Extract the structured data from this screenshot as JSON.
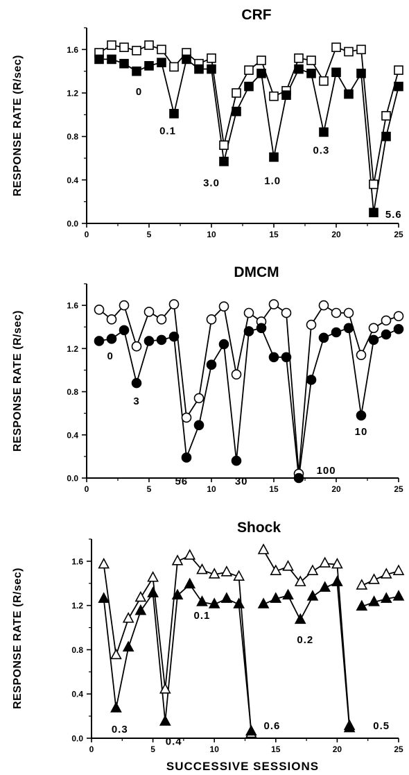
{
  "figure": {
    "xlabel": "SUCCESSIVE SESSIONS"
  },
  "chart_data": [
    {
      "type": "line",
      "title": "CRF",
      "ylabel": "RESPONSE RATE (R/sec)",
      "xlim": [
        0,
        25
      ],
      "ylim": [
        0,
        1.8
      ],
      "xticks": [
        0,
        5,
        10,
        15,
        20,
        25
      ],
      "xtick_labels": [
        "0",
        "5",
        "10",
        "15",
        "20",
        "25"
      ],
      "yticks": [
        0,
        0.4,
        0.8,
        1.2,
        1.6
      ],
      "ytick_labels": [
        "0.0",
        "0.4",
        "0.8",
        "1.2",
        "1.6"
      ],
      "series": [
        {
          "marker": "square-open",
          "segments": [
            [
              [
                1,
                1.57
              ],
              [
                2,
                1.64
              ],
              [
                3,
                1.62
              ],
              [
                4,
                1.59
              ],
              [
                5,
                1.64
              ],
              [
                6,
                1.6
              ],
              [
                7,
                1.44
              ],
              [
                8,
                1.57
              ],
              [
                9,
                1.47
              ],
              [
                10,
                1.52
              ],
              [
                11,
                0.72
              ],
              [
                12,
                1.2
              ],
              [
                13,
                1.41
              ],
              [
                14,
                1.5
              ],
              [
                15,
                1.17
              ],
              [
                16,
                1.22
              ],
              [
                17,
                1.52
              ],
              [
                18,
                1.5
              ],
              [
                19,
                1.31
              ],
              [
                20,
                1.62
              ],
              [
                21,
                1.58
              ],
              [
                22,
                1.6
              ],
              [
                23,
                0.36
              ],
              [
                24,
                0.99
              ],
              [
                25,
                1.41
              ]
            ]
          ]
        },
        {
          "marker": "square-filled",
          "segments": [
            [
              [
                1,
                1.51
              ],
              [
                2,
                1.51
              ],
              [
                3,
                1.47
              ],
              [
                4,
                1.4
              ],
              [
                5,
                1.45
              ],
              [
                6,
                1.48
              ],
              [
                7,
                1.01
              ],
              [
                8,
                1.51
              ],
              [
                9,
                1.42
              ],
              [
                10,
                1.42
              ],
              [
                11,
                0.57
              ],
              [
                12,
                1.03
              ],
              [
                13,
                1.26
              ],
              [
                14,
                1.38
              ],
              [
                15,
                0.61
              ],
              [
                16,
                1.18
              ],
              [
                17,
                1.42
              ],
              [
                18,
                1.38
              ],
              [
                19,
                0.84
              ],
              [
                20,
                1.39
              ],
              [
                21,
                1.19
              ],
              [
                22,
                1.38
              ],
              [
                23,
                0.1
              ],
              [
                24,
                0.8
              ],
              [
                25,
                1.26
              ]
            ]
          ]
        }
      ],
      "annotations": [
        {
          "text": "0",
          "x": 4.2,
          "y": 1.18
        },
        {
          "text": "0.1",
          "x": 6.5,
          "y": 0.82
        },
        {
          "text": "3.0",
          "x": 10.0,
          "y": 0.34
        },
        {
          "text": "1.0",
          "x": 14.9,
          "y": 0.36
        },
        {
          "text": "0.3",
          "x": 18.8,
          "y": 0.64
        },
        {
          "text": "5.6",
          "x": 24.6,
          "y": 0.05
        }
      ]
    },
    {
      "type": "line",
      "title": "DMCM",
      "ylabel": "RESPONSE RATE (R/sec)",
      "xlim": [
        0,
        25
      ],
      "ylim": [
        0,
        1.8
      ],
      "xticks": [
        0,
        5,
        10,
        15,
        20,
        25
      ],
      "xtick_labels": [
        "0",
        "5",
        "10",
        "15",
        "20",
        "25"
      ],
      "yticks": [
        0,
        0.4,
        0.8,
        1.2,
        1.6
      ],
      "ytick_labels": [
        "0.0",
        "0.4",
        "0.8",
        "1.2",
        "1.6"
      ],
      "series": [
        {
          "marker": "circle-open",
          "segments": [
            [
              [
                1,
                1.56
              ],
              [
                2,
                1.47
              ],
              [
                3,
                1.6
              ],
              [
                4,
                1.22
              ],
              [
                5,
                1.54
              ],
              [
                6,
                1.47
              ],
              [
                7,
                1.61
              ],
              [
                8,
                0.56
              ],
              [
                9,
                0.74
              ],
              [
                10,
                1.47
              ],
              [
                11,
                1.59
              ],
              [
                12,
                0.96
              ],
              [
                13,
                1.53
              ],
              [
                14,
                1.45
              ],
              [
                15,
                1.61
              ],
              [
                16,
                1.53
              ],
              [
                17,
                0.04
              ],
              [
                18,
                1.42
              ],
              [
                19,
                1.6
              ],
              [
                20,
                1.53
              ],
              [
                21,
                1.53
              ],
              [
                22,
                1.14
              ],
              [
                23,
                1.39
              ],
              [
                24,
                1.46
              ],
              [
                25,
                1.5
              ]
            ]
          ]
        },
        {
          "marker": "circle-filled",
          "segments": [
            [
              [
                1,
                1.27
              ],
              [
                2,
                1.29
              ],
              [
                3,
                1.37
              ],
              [
                4,
                0.88
              ],
              [
                5,
                1.27
              ],
              [
                6,
                1.28
              ],
              [
                7,
                1.31
              ],
              [
                8,
                0.19
              ],
              [
                9,
                0.49
              ],
              [
                10,
                1.05
              ],
              [
                11,
                1.24
              ],
              [
                12,
                0.16
              ],
              [
                13,
                1.36
              ],
              [
                14,
                1.39
              ],
              [
                15,
                1.12
              ],
              [
                16,
                1.12
              ],
              [
                17,
                0.0
              ],
              [
                18,
                0.91
              ],
              [
                19,
                1.3
              ],
              [
                20,
                1.35
              ],
              [
                21,
                1.39
              ],
              [
                22,
                0.58
              ],
              [
                23,
                1.28
              ],
              [
                24,
                1.33
              ],
              [
                25,
                1.38
              ]
            ]
          ]
        }
      ],
      "annotations": [
        {
          "text": "0",
          "x": 1.9,
          "y": 1.1
        },
        {
          "text": "3",
          "x": 4.0,
          "y": 0.68
        },
        {
          "text": "10",
          "x": 22.0,
          "y": 0.4
        },
        {
          "text": "56",
          "x": 7.6,
          "y": -0.06
        },
        {
          "text": "30",
          "x": 12.4,
          "y": -0.06
        },
        {
          "text": "100",
          "x": 19.2,
          "y": 0.04
        }
      ]
    },
    {
      "type": "line",
      "title": "Shock",
      "ylabel": "RESPONSE RATE (R/sec)",
      "xlabel": "SUCCESSIVE SESSIONS",
      "xlim": [
        0,
        25
      ],
      "ylim": [
        0,
        1.8
      ],
      "xticks": [
        0,
        5,
        10,
        15,
        20,
        25
      ],
      "xtick_labels": [
        "0",
        "5",
        "10",
        "15",
        "20",
        "25"
      ],
      "yticks": [
        0,
        0.4,
        0.8,
        1.2,
        1.6
      ],
      "ytick_labels": [
        "0.0",
        "0.4",
        "0.8",
        "1.2",
        "1.6"
      ],
      "series": [
        {
          "marker": "triangle-open",
          "segments": [
            [
              [
                1,
                1.57
              ],
              [
                2,
                0.75
              ],
              [
                3,
                1.08
              ],
              [
                4,
                1.27
              ],
              [
                5,
                1.45
              ],
              [
                6,
                0.44
              ],
              [
                7,
                1.6
              ],
              [
                8,
                1.65
              ],
              [
                9,
                1.52
              ],
              [
                10,
                1.48
              ],
              [
                11,
                1.5
              ],
              [
                12,
                1.46
              ],
              [
                13,
                0.04
              ]
            ],
            [
              [
                14,
                1.7
              ],
              [
                15,
                1.51
              ],
              [
                16,
                1.55
              ],
              [
                17,
                1.41
              ],
              [
                18,
                1.51
              ],
              [
                19,
                1.58
              ],
              [
                20,
                1.57
              ],
              [
                21,
                0.11
              ]
            ],
            [
              [
                22,
                1.38
              ],
              [
                23,
                1.43
              ],
              [
                24,
                1.48
              ],
              [
                25,
                1.51
              ]
            ]
          ]
        },
        {
          "marker": "triangle-filled",
          "segments": [
            [
              [
                1,
                1.26
              ],
              [
                2,
                0.27
              ],
              [
                3,
                0.82
              ],
              [
                4,
                1.15
              ],
              [
                5,
                1.31
              ],
              [
                6,
                0.15
              ],
              [
                7,
                1.29
              ],
              [
                8,
                1.39
              ],
              [
                9,
                1.23
              ],
              [
                10,
                1.21
              ],
              [
                11,
                1.26
              ],
              [
                12,
                1.21
              ],
              [
                13,
                0.06
              ]
            ],
            [
              [
                14,
                1.21
              ],
              [
                15,
                1.26
              ],
              [
                16,
                1.29
              ],
              [
                17,
                1.07
              ],
              [
                18,
                1.28
              ],
              [
                19,
                1.36
              ],
              [
                20,
                1.41
              ],
              [
                21,
                0.09
              ]
            ],
            [
              [
                22,
                1.19
              ],
              [
                23,
                1.23
              ],
              [
                24,
                1.26
              ],
              [
                25,
                1.28
              ]
            ]
          ]
        }
      ],
      "annotations": [
        {
          "text": "0.1",
          "x": 9.0,
          "y": 1.08
        },
        {
          "text": "0.2",
          "x": 17.4,
          "y": 0.86
        },
        {
          "text": "0.3",
          "x": 2.3,
          "y": 0.05
        },
        {
          "text": "0.4",
          "x": 6.7,
          "y": -0.06
        },
        {
          "text": "0.6",
          "x": 14.7,
          "y": 0.08
        },
        {
          "text": "0.5",
          "x": 23.6,
          "y": 0.08
        }
      ]
    }
  ]
}
